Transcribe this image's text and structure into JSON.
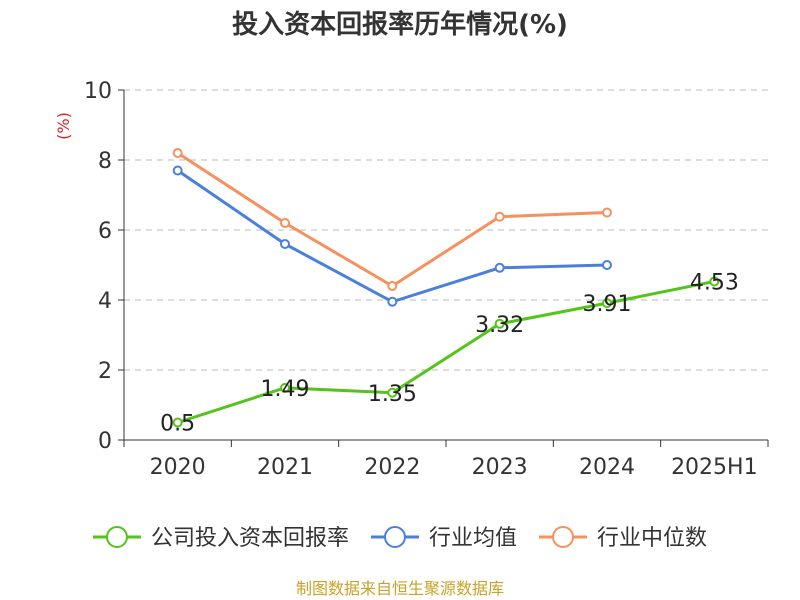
{
  "chart_data": {
    "type": "line",
    "title": "投入资本回报率历年情况(%)",
    "unit": "(%)",
    "categories": [
      "2020",
      "2021",
      "2022",
      "2023",
      "2024",
      "2025H1"
    ],
    "ylim": [
      0,
      10
    ],
    "yticks": [
      0,
      2,
      4,
      6,
      8,
      10
    ],
    "grid": true,
    "legend_position": "bottom",
    "series": [
      {
        "name": "公司投入资本回报率",
        "color": "#52c41a",
        "values": [
          0.5,
          1.49,
          1.35,
          3.32,
          3.91,
          4.53
        ],
        "labels": [
          "0.5",
          "1.49",
          "1.35",
          "3.32",
          "3.91",
          "4.53"
        ]
      },
      {
        "name": "行业均值",
        "color": "#4a7fdc",
        "values": [
          7.7,
          5.6,
          3.95,
          4.92,
          5.0,
          null
        ]
      },
      {
        "name": "行业中位数",
        "color": "#f7905d",
        "values": [
          8.2,
          6.2,
          4.4,
          6.38,
          6.5,
          null
        ]
      }
    ]
  },
  "source": "制图数据来自恒生聚源数据库",
  "colors": {
    "unit": "#e02020",
    "source": "#c9a227",
    "axis": "#333333",
    "grid": "#bbbbbb"
  }
}
